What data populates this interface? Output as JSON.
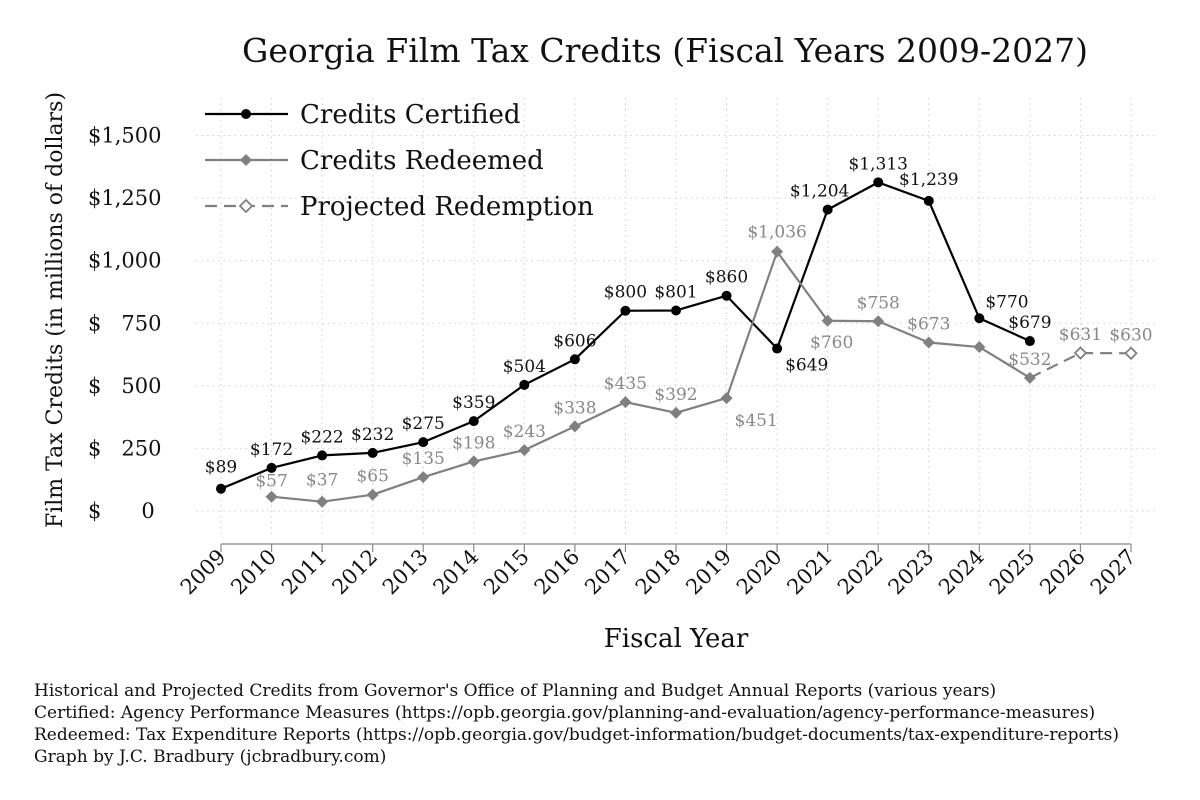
{
  "chart_data": {
    "type": "line",
    "title": "Georgia Film Tax Credits (Fiscal Years 2009-2027)",
    "xlabel": "Fiscal Year",
    "ylabel": "Film Tax Credits (in millions of dollars)",
    "ylim": [
      -100,
      1650
    ],
    "yticks": [
      0,
      250,
      500,
      750,
      1000,
      1250,
      1500
    ],
    "ytick_labels": [
      "$      0",
      "$   250",
      "$   500",
      "$   750",
      "$1,000",
      "$1,250",
      "$1,500"
    ],
    "xlim": [
      2009,
      2027
    ],
    "x": [
      "2009",
      "2010",
      "2011",
      "2012",
      "2013",
      "2014",
      "2015",
      "2016",
      "2017",
      "2018",
      "2019",
      "2020",
      "2021",
      "2022",
      "2023",
      "2024",
      "2025",
      "2026",
      "2027"
    ],
    "grid": true,
    "legend_position": "top-left",
    "series": [
      {
        "name": "Credits Certified",
        "color": "#000000",
        "marker": "circle",
        "line": "solid",
        "points": [
          {
            "x": 2009,
            "y": 89,
            "label": "$89"
          },
          {
            "x": 2010,
            "y": 172,
            "label": "$172"
          },
          {
            "x": 2011,
            "y": 222,
            "label": "$222"
          },
          {
            "x": 2012,
            "y": 232,
            "label": "$232"
          },
          {
            "x": 2013,
            "y": 275,
            "label": "$275"
          },
          {
            "x": 2014,
            "y": 359,
            "label": "$359"
          },
          {
            "x": 2015,
            "y": 504,
            "label": "$504"
          },
          {
            "x": 2016,
            "y": 606,
            "label": "$606"
          },
          {
            "x": 2017,
            "y": 800,
            "label": "$800"
          },
          {
            "x": 2018,
            "y": 801,
            "label": "$801"
          },
          {
            "x": 2019,
            "y": 860,
            "label": "$860"
          },
          {
            "x": 2020,
            "y": 649,
            "label": "$649"
          },
          {
            "x": 2021,
            "y": 1204,
            "label": "$1,204"
          },
          {
            "x": 2022,
            "y": 1313,
            "label": "$1,313"
          },
          {
            "x": 2023,
            "y": 1239,
            "label": "$1,239"
          },
          {
            "x": 2024,
            "y": 770,
            "label": "$770"
          },
          {
            "x": 2025,
            "y": 679,
            "label": "$679"
          }
        ]
      },
      {
        "name": "Credits Redeemed",
        "color": "#808080",
        "marker": "diamond",
        "line": "solid",
        "points": [
          {
            "x": 2010,
            "y": 57,
            "label": "$57"
          },
          {
            "x": 2011,
            "y": 37,
            "label": "$37"
          },
          {
            "x": 2012,
            "y": 65,
            "label": "$65"
          },
          {
            "x": 2013,
            "y": 135,
            "label": "$135"
          },
          {
            "x": 2014,
            "y": 198,
            "label": "$198"
          },
          {
            "x": 2015,
            "y": 243,
            "label": "$243"
          },
          {
            "x": 2016,
            "y": 338,
            "label": "$338"
          },
          {
            "x": 2017,
            "y": 435,
            "label": "$435"
          },
          {
            "x": 2018,
            "y": 392,
            "label": "$392"
          },
          {
            "x": 2019,
            "y": 451,
            "label": "$451"
          },
          {
            "x": 2020,
            "y": 1036,
            "label": "$1,036"
          },
          {
            "x": 2021,
            "y": 760,
            "label": "$760"
          },
          {
            "x": 2022,
            "y": 758,
            "label": "$758"
          },
          {
            "x": 2023,
            "y": 673,
            "label": "$673"
          },
          {
            "x": 2024,
            "y": 655,
            "label": ""
          },
          {
            "x": 2025,
            "y": 532,
            "label": "$532"
          }
        ]
      },
      {
        "name": "Projected Redemption",
        "color": "#808080",
        "marker": "hollow-diamond",
        "line": "dashed",
        "points": [
          {
            "x": 2025,
            "y": 532,
            "label": ""
          },
          {
            "x": 2026,
            "y": 631,
            "label": "$631"
          },
          {
            "x": 2027,
            "y": 630,
            "label": "$630"
          }
        ]
      }
    ],
    "footer": [
      "Historical and Projected Credits from Governor's Office of Planning and Budget Annual Reports (various years)",
      "Certified: Agency Performance Measures (https://opb.georgia.gov/planning-and-evaluation/agency-performance-measures)",
      "Redeemed: Tax Expenditure Reports (https://opb.georgia.gov/budget-information/budget-documents/tax-expenditure-reports)",
      "Graph by J.C. Bradbury (jcbradbury.com)"
    ]
  }
}
